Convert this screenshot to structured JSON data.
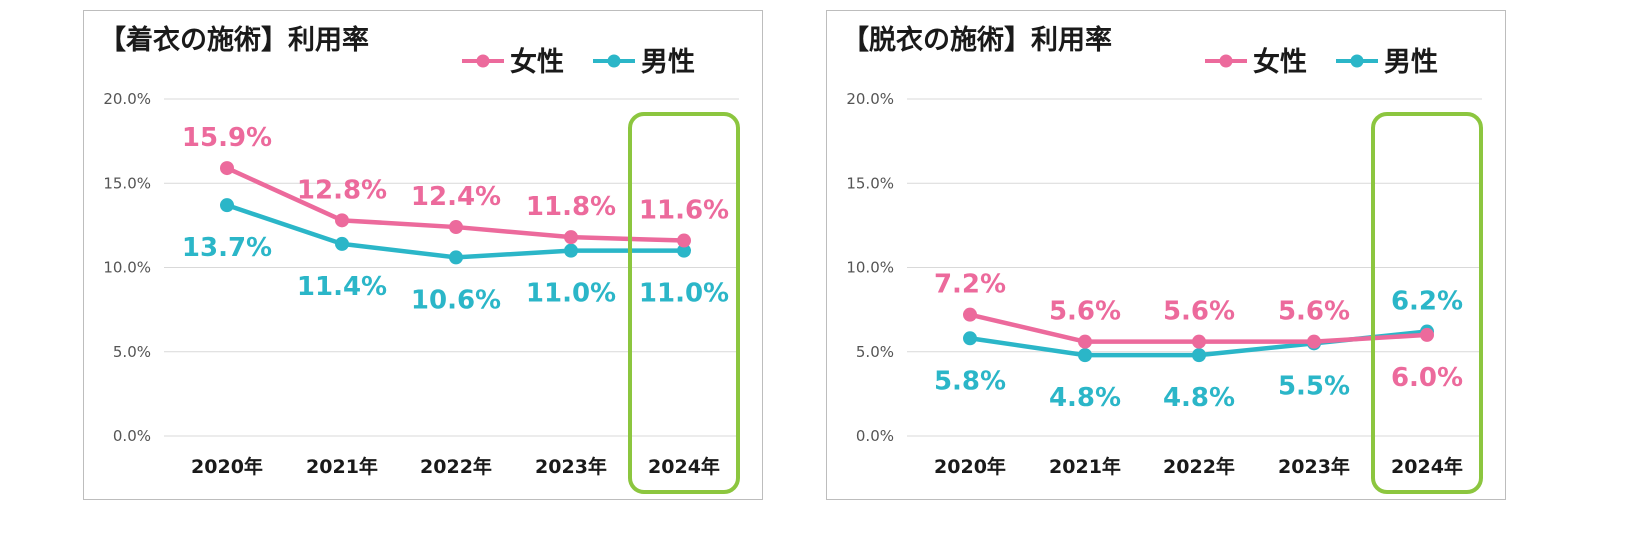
{
  "colors": {
    "female": "#ec6a9c",
    "male": "#2bb6c8",
    "highlight": "#8cc63f",
    "grid": "#d9d9d9"
  },
  "chart_data": [
    {
      "type": "line",
      "title": "【着衣の施術】利用率",
      "categories": [
        "2020年",
        "2021年",
        "2022年",
        "2023年",
        "2024年"
      ],
      "yticks": [
        "20.0%",
        "15.0%",
        "10.0%",
        "5.0%",
        "0.0%"
      ],
      "ylim": [
        0,
        20
      ],
      "highlight_index": 4,
      "series": [
        {
          "name": "女性",
          "key": "female",
          "values": [
            15.9,
            12.8,
            12.4,
            11.8,
            11.6
          ],
          "labels": [
            "15.9%",
            "12.8%",
            "12.4%",
            "11.8%",
            "11.6%"
          ],
          "label_pos": [
            "above",
            "above",
            "above",
            "above",
            "above"
          ]
        },
        {
          "name": "男性",
          "key": "male",
          "values": [
            13.7,
            11.4,
            10.6,
            11.0,
            11.0
          ],
          "labels": [
            "13.7%",
            "11.4%",
            "10.6%",
            "11.0%",
            "11.0%"
          ],
          "label_pos": [
            "below",
            "below",
            "below",
            "below",
            "below"
          ]
        }
      ]
    },
    {
      "type": "line",
      "title": "【脱衣の施術】利用率",
      "categories": [
        "2020年",
        "2021年",
        "2022年",
        "2023年",
        "2024年"
      ],
      "yticks": [
        "20.0%",
        "15.0%",
        "10.0%",
        "5.0%",
        "0.0%"
      ],
      "ylim": [
        0,
        20
      ],
      "highlight_index": 4,
      "series": [
        {
          "name": "女性",
          "key": "female",
          "values": [
            7.2,
            5.6,
            5.6,
            5.6,
            6.0
          ],
          "labels": [
            "7.2%",
            "5.6%",
            "5.6%",
            "5.6%",
            "6.0%"
          ],
          "label_pos": [
            "above",
            "above",
            "above",
            "above",
            "below"
          ]
        },
        {
          "name": "男性",
          "key": "male",
          "values": [
            5.8,
            4.8,
            4.8,
            5.5,
            6.2
          ],
          "labels": [
            "5.8%",
            "4.8%",
            "4.8%",
            "5.5%",
            "6.2%"
          ],
          "label_pos": [
            "below",
            "below",
            "below",
            "below",
            "above"
          ]
        }
      ]
    }
  ]
}
